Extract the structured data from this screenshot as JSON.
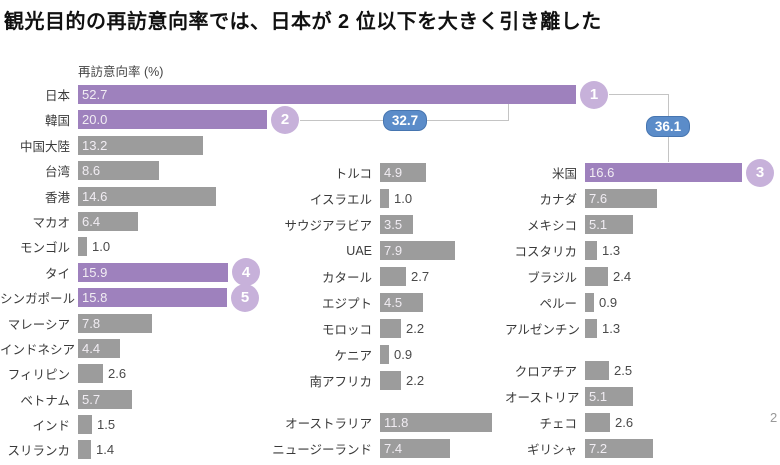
{
  "title": "観光目的の再訪意向率では、日本が 2 位以下を大きく引き離した",
  "colors": {
    "highlight_bar": "#9e81bd",
    "default_bar": "#9c9c9c",
    "rank_circle": "#c7b1da",
    "gap_badge": "#5b8cc9",
    "gap_badge_border": "#4675b0",
    "connector_line": "#c4c4c4",
    "bar_value_inside": "#f1edf3",
    "bar_value_outside": "#4a4a4a",
    "label_text": "#3a3a3a",
    "title_text": "#111111"
  },
  "chart_data": {
    "type": "bar",
    "orientation": "horizontal",
    "title": "観光目的の再訪意向率では、日本が 2 位以下を大きく引き離した",
    "axis_label": "再訪意向率 (%)",
    "unit": "%",
    "xlim": [
      0,
      55
    ],
    "inside_label_min": 3.5,
    "columns": [
      {
        "name": "asia",
        "rows": [
          {
            "label": "日本",
            "value": 52.7,
            "highlight": true,
            "rank": 1
          },
          {
            "label": "韓国",
            "value": 20.0,
            "highlight": true,
            "rank": 2
          },
          {
            "label": "中国大陸",
            "value": 13.2
          },
          {
            "label": "台湾",
            "value": 8.6
          },
          {
            "label": "香港",
            "value": 14.6
          },
          {
            "label": "マカオ",
            "value": 6.4
          },
          {
            "label": "モンゴル",
            "value": 1.0
          },
          {
            "label": "タイ",
            "value": 15.9,
            "highlight": true,
            "rank": 4
          },
          {
            "label": "シンガポール",
            "value": 15.8,
            "highlight": true,
            "rank": 5
          },
          {
            "label": "マレーシア",
            "value": 7.8
          },
          {
            "label": "インドネシア",
            "value": 4.4
          },
          {
            "label": "フィリピン",
            "value": 2.6
          },
          {
            "label": "ベトナム",
            "value": 5.7
          },
          {
            "label": "インド",
            "value": 1.5
          },
          {
            "label": "スリランカ",
            "value": 1.4
          }
        ]
      },
      {
        "name": "middle-east-africa-oceania",
        "rows": [
          {
            "label": "トルコ",
            "value": 4.9
          },
          {
            "label": "イスラエル",
            "value": 1.0
          },
          {
            "label": "サウジアラビア",
            "value": 3.5
          },
          {
            "label": "UAE",
            "value": 7.9
          },
          {
            "label": "カタール",
            "value": 2.7
          },
          {
            "label": "エジプト",
            "value": 4.5
          },
          {
            "label": "モロッコ",
            "value": 2.2
          },
          {
            "label": "ケニア",
            "value": 0.9
          },
          {
            "label": "南アフリカ",
            "value": 2.2
          },
          {
            "spacer": true
          },
          {
            "label": "オーストラリア",
            "value": 11.8
          },
          {
            "label": "ニュージーランド",
            "value": 7.4
          }
        ]
      },
      {
        "name": "americas-europe",
        "rows": [
          {
            "label": "米国",
            "value": 16.6,
            "highlight": true,
            "rank": 3
          },
          {
            "label": "カナダ",
            "value": 7.6
          },
          {
            "label": "メキシコ",
            "value": 5.1
          },
          {
            "label": "コスタリカ",
            "value": 1.3
          },
          {
            "label": "ブラジル",
            "value": 2.4
          },
          {
            "label": "ペルー",
            "value": 0.9
          },
          {
            "label": "アルゼンチン",
            "value": 1.3
          },
          {
            "spacer": true
          },
          {
            "label": "クロアチア",
            "value": 2.5
          },
          {
            "label": "オーストリア",
            "value": 5.1
          },
          {
            "label": "チェコ",
            "value": 2.6
          },
          {
            "label": "ギリシャ",
            "value": 7.2
          }
        ]
      }
    ],
    "gap_annotations": [
      {
        "id": "gap-japan-korea",
        "between": [
          "日本",
          "韓国"
        ],
        "value": "32.7"
      },
      {
        "id": "gap-japan-usa",
        "between": [
          "日本",
          "米国"
        ],
        "value": "36.1"
      }
    ],
    "cropped_fragment": "2"
  }
}
